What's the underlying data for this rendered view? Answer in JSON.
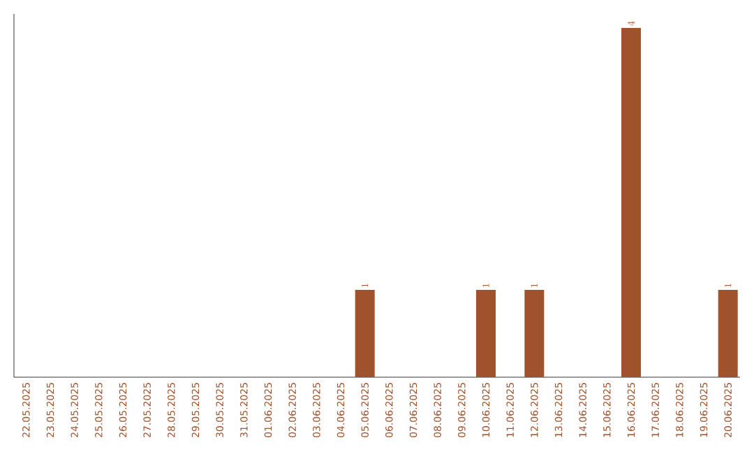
{
  "chart_data": {
    "type": "bar",
    "categories": [
      "22.05.2025",
      "23.05.2025",
      "24.05.2025",
      "25.05.2025",
      "26.05.2025",
      "27.05.2025",
      "28.05.2025",
      "29.05.2025",
      "30.05.2025",
      "31.05.2025",
      "01.06.2025",
      "02.06.2025",
      "03.06.2025",
      "04.06.2025",
      "05.06.2025",
      "06.06.2025",
      "07.06.2025",
      "08.06.2025",
      "09.06.2025",
      "10.06.2025",
      "11.06.2025",
      "12.06.2025",
      "13.06.2025",
      "14.06.2025",
      "15.06.2025",
      "16.06.2025",
      "17.06.2025",
      "18.06.2025",
      "19.06.2025",
      "20.06.2025"
    ],
    "values": [
      null,
      null,
      null,
      null,
      null,
      null,
      null,
      null,
      null,
      null,
      null,
      null,
      null,
      null,
      1,
      null,
      null,
      null,
      null,
      1,
      null,
      1,
      null,
      null,
      null,
      4,
      null,
      null,
      null,
      1
    ],
    "data_labels": true,
    "color": "#a0522d",
    "grid": false
  }
}
